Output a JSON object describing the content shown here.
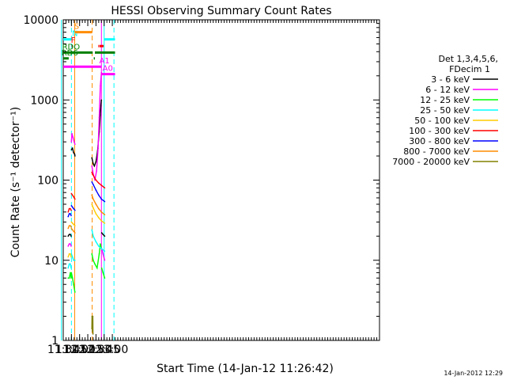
{
  "chart_data": {
    "type": "line",
    "title": "HESSI Observing Summary Count Rates",
    "xlabel": "Start Time (14-Jan-12 11:26:42)",
    "ylabel": "Count Rate (s⁻¹ detector⁻¹)",
    "yscale": "log",
    "ylim": [
      1,
      10000
    ],
    "xlim_minutes": [
      690,
      1270
    ],
    "x_ticks": [
      "11:30",
      "11:45",
      "12:00",
      "12:15",
      "12:30",
      "12:45",
      "13:00"
    ],
    "y_ticks": [
      "1",
      "10",
      "100",
      "1000",
      "10000"
    ],
    "legend_header": [
      "Det 1,3,4,5,6,",
      "FDecim 1"
    ],
    "legend_position": "right",
    "footer": "14-Jan-2012 12:29",
    "series": [
      {
        "name": "3 - 6 keV",
        "color": "#000000",
        "segments": [
          {
            "x": [
              "11:39",
              "11:41",
              "11:43",
              "11:44:30"
            ],
            "y": [
              20,
              21,
              21,
              20
            ]
          },
          {
            "x": [
              "11:45",
              "11:47",
              "11:49",
              "11:51",
              "11:51:30"
            ],
            "y": [
              240,
              250,
              220,
              210,
              200
            ]
          },
          {
            "x": [
              "12:22:30",
              "12:25",
              "12:27",
              "12:30",
              "12:33",
              "12:36",
              "12:38",
              "12:39",
              "12:40"
            ],
            "y": [
              190,
              160,
              150,
              170,
              230,
              400,
              650,
              850,
              1000
            ]
          },
          {
            "x": [
              "12:40:30",
              "12:43",
              "12:46"
            ],
            "y": [
              22,
              21,
              20
            ]
          }
        ]
      },
      {
        "name": "6 - 12 keV",
        "color": "#ff00ff",
        "segments": [
          {
            "x": [
              "11:39",
              "11:41",
              "11:43",
              "11:44:30"
            ],
            "y": [
              15,
              16,
              16,
              15
            ]
          },
          {
            "x": [
              "11:45",
              "11:46",
              "11:48",
              "11:50",
              "11:51:30"
            ],
            "y": [
              300,
              380,
              340,
              300,
              280
            ]
          },
          {
            "x": [
              "12:22:30",
              "12:25",
              "12:28",
              "12:31",
              "12:34",
              "12:36",
              "12:38",
              "12:40"
            ],
            "y": [
              150,
              120,
              100,
              130,
              250,
              600,
              1500,
              2200
            ]
          },
          {
            "x": [
              "12:40:30",
              "12:43",
              "12:46"
            ],
            "y": [
              14,
              12,
              10
            ]
          }
        ]
      },
      {
        "name": "12 - 25 keV",
        "color": "#00ff00",
        "segments": [
          {
            "x": [
              "11:39",
              "11:41",
              "11:43",
              "11:44:30"
            ],
            "y": [
              6,
              6,
              7,
              6
            ]
          },
          {
            "x": [
              "11:45",
              "11:47",
              "11:49",
              "11:51:30"
            ],
            "y": [
              7,
              6,
              5,
              4
            ]
          },
          {
            "x": [
              "12:22:30",
              "12:25",
              "12:28",
              "12:32",
              "12:36",
              "12:38",
              "12:40"
            ],
            "y": [
              12,
              10,
              9,
              8,
              12,
              16,
              14
            ]
          },
          {
            "x": [
              "12:40:30",
              "12:43",
              "12:46"
            ],
            "y": [
              8,
              7,
              6
            ]
          }
        ]
      },
      {
        "name": "25 - 50 keV",
        "color": "#00ffff",
        "segments": [
          {
            "x": [
              "11:39",
              "11:41",
              "11:43",
              "11:44:30"
            ],
            "y": [
              8,
              9,
              9,
              8
            ]
          },
          {
            "x": [
              "11:45",
              "11:47",
              "11:49",
              "11:51:30"
            ],
            "y": [
              12,
              11,
              10,
              10
            ]
          },
          {
            "x": [
              "12:22:30",
              "12:25",
              "12:30",
              "12:35",
              "12:40",
              "12:46"
            ],
            "y": [
              24,
              20,
              17,
              15,
              14,
              13
            ]
          }
        ]
      },
      {
        "name": "50 - 100 keV",
        "color": "#ffcc00",
        "segments": [
          {
            "x": [
              "11:39",
              "11:41",
              "11:43",
              "11:44:30"
            ],
            "y": [
              11,
              12,
              12,
              11
            ]
          },
          {
            "x": [
              "11:45",
              "11:47",
              "11:49",
              "11:51:30"
            ],
            "y": [
              30,
              29,
              28,
              27
            ]
          },
          {
            "x": [
              "12:22:30",
              "12:25",
              "12:30",
              "12:35",
              "12:40",
              "12:46"
            ],
            "y": [
              50,
              45,
              38,
              34,
              31,
              29
            ]
          }
        ]
      },
      {
        "name": "100 - 300 keV",
        "color": "#ff0000",
        "segments": [
          {
            "x": [
              "11:39",
              "11:41",
              "11:43",
              "11:44:30"
            ],
            "y": [
              40,
              44,
              44,
              42
            ]
          },
          {
            "x": [
              "11:45",
              "11:47",
              "11:49",
              "11:51:30"
            ],
            "y": [
              68,
              65,
              62,
              58
            ]
          },
          {
            "x": [
              "12:22:30",
              "12:25",
              "12:30",
              "12:35",
              "12:40",
              "12:46"
            ],
            "y": [
              125,
              115,
              100,
              92,
              86,
              80
            ]
          }
        ]
      },
      {
        "name": "300 - 800 keV",
        "color": "#0000ff",
        "segments": [
          {
            "x": [
              "11:39",
              "11:41",
              "11:43",
              "11:44:30"
            ],
            "y": [
              35,
              38,
              38,
              36
            ]
          },
          {
            "x": [
              "11:45",
              "11:47",
              "11:49",
              "11:51:30"
            ],
            "y": [
              48,
              46,
              44,
              42
            ]
          },
          {
            "x": [
              "12:22:30",
              "12:25",
              "12:30",
              "12:35",
              "12:40",
              "12:46"
            ],
            "y": [
              95,
              88,
              75,
              65,
              58,
              54
            ]
          }
        ]
      },
      {
        "name": "800 - 7000 keV",
        "color": "#ff8c00",
        "segments": [
          {
            "x": [
              "11:39",
              "11:41",
              "11:43",
              "11:44:30"
            ],
            "y": [
              25,
              27,
              27,
              26
            ]
          },
          {
            "x": [
              "11:45",
              "11:47",
              "11:49",
              "11:51:30"
            ],
            "y": [
              25,
              24,
              23,
              22
            ]
          },
          {
            "x": [
              "12:22:30",
              "12:25",
              "12:30",
              "12:35",
              "12:40",
              "12:46"
            ],
            "y": [
              65,
              58,
              50,
              44,
              40,
              37
            ]
          }
        ]
      },
      {
        "name": "7000 - 20000 keV",
        "color": "#808000",
        "segments": [
          {
            "x": [
              "12:22:30",
              "12:22:45",
              "12:23",
              "12:23:15",
              "12:23:30",
              "12:23:45",
              "12:24",
              "12:24:15",
              "12:24:30"
            ],
            "y": [
              1.4,
              2,
              1.5,
              2,
              1.3,
              2,
              1.6,
              2,
              1.2
            ]
          }
        ]
      }
    ],
    "flags": [
      {
        "label": "N",
        "color": "#00ffff",
        "level": 5700,
        "segments": [
          [
            "11:26:42",
            "11:44:30"
          ],
          [
            "12:45",
            "13:05"
          ]
        ],
        "label_at": "11:46"
      },
      {
        "label": "S",
        "color": "#ff8c00",
        "level": 7000,
        "segments": [
          [
            "11:51",
            "12:23"
          ]
        ],
        "label_at": "11:50"
      },
      {
        "label": "F",
        "color": "#ff0000",
        "level": 4700,
        "segments": [
          [
            "11:45:30",
            "11:47:30"
          ],
          [
            "12:34",
            "12:35"
          ],
          [
            "12:36",
            "12:44"
          ]
        ],
        "label_at": "11:44"
      },
      {
        "label": "RDO",
        "color": "#008000",
        "level": 3900,
        "segments": [
          [
            "11:28",
            "12:24"
          ],
          [
            "12:28",
            "13:05"
          ]
        ],
        "label_at": "11:28"
      },
      {
        "label": "RD6",
        "color": "#008000",
        "level": 3300,
        "segments": [
          [
            "11:28",
            "11:40"
          ],
          [
            "12:26",
            "12:28"
          ]
        ],
        "label_at": "11:26:42"
      },
      {
        "label": "A1",
        "color": "#ff00ff",
        "level": 2600,
        "segments": [
          [
            "11:26:42",
            "12:40"
          ]
        ],
        "label_at": "12:36"
      },
      {
        "label": "A0",
        "color": "#ff00ff",
        "level": 2100,
        "segments": [
          [
            "12:40",
            "13:05"
          ]
        ],
        "label_at": "12:42"
      }
    ],
    "vertical_markers": [
      {
        "time": "11:26:42",
        "color": "#00ffff",
        "style": "solid"
      },
      {
        "time": "11:45",
        "color": "#00ffff",
        "style": "dashed"
      },
      {
        "time": "11:51",
        "color": "#ff8c00",
        "style": "solid"
      },
      {
        "time": "12:23",
        "color": "#ff8c00",
        "style": "dashed"
      },
      {
        "time": "12:45",
        "color": "#00ffff",
        "style": "solid"
      },
      {
        "time": "13:03",
        "color": "#00ffff",
        "style": "dashed"
      },
      {
        "time": "12:40",
        "color": "#ff00ff",
        "style": "solid"
      }
    ]
  }
}
